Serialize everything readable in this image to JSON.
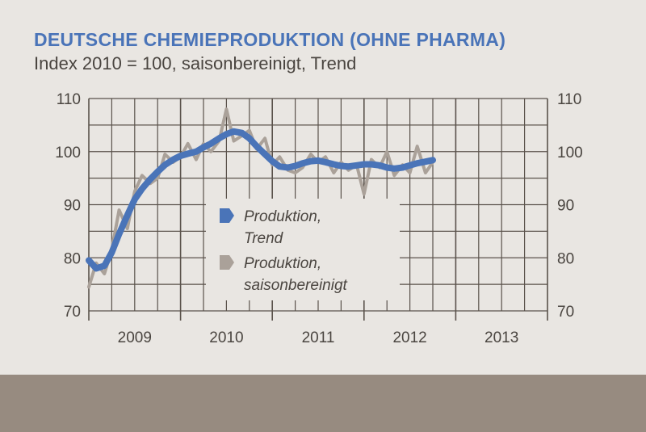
{
  "colors": {
    "background": "#e9e6e2",
    "title": "#4a74b8",
    "trend": "#4a74b8",
    "adjusted": "#aaa199",
    "grid": "#5a524b",
    "bottom_band": "#978b80"
  },
  "chart_data": {
    "type": "line",
    "title": "DEUTSCHE CHEMIEPRODUKTION (OHNE PHARMA)",
    "subtitle": "Index 2010 = 100, saisonbereinigt, Trend",
    "xlabel": "",
    "ylabel": "",
    "x_categories": [
      "2009",
      "2010",
      "2011",
      "2012",
      "2013"
    ],
    "ylim": [
      70,
      110
    ],
    "yticks": [
      70,
      80,
      90,
      100,
      110
    ],
    "grid": true,
    "legend_position": "center",
    "series": [
      {
        "name": "Produktion, Trend",
        "color": "#4a74b8",
        "values": [
          {
            "x": 2009.0,
            "y": 79.5
          },
          {
            "x": 2009.08,
            "y": 78.0
          },
          {
            "x": 2009.17,
            "y": 78.5
          },
          {
            "x": 2009.25,
            "y": 81.0
          },
          {
            "x": 2009.33,
            "y": 84.5
          },
          {
            "x": 2009.42,
            "y": 88.0
          },
          {
            "x": 2009.5,
            "y": 91.0
          },
          {
            "x": 2009.58,
            "y": 93.0
          },
          {
            "x": 2009.67,
            "y": 94.8
          },
          {
            "x": 2009.75,
            "y": 96.2
          },
          {
            "x": 2009.83,
            "y": 97.5
          },
          {
            "x": 2009.92,
            "y": 98.5
          },
          {
            "x": 2010.0,
            "y": 99.2
          },
          {
            "x": 2010.08,
            "y": 99.6
          },
          {
            "x": 2010.17,
            "y": 100.0
          },
          {
            "x": 2010.25,
            "y": 100.8
          },
          {
            "x": 2010.33,
            "y": 101.5
          },
          {
            "x": 2010.42,
            "y": 102.5
          },
          {
            "x": 2010.5,
            "y": 103.3
          },
          {
            "x": 2010.58,
            "y": 103.8
          },
          {
            "x": 2010.67,
            "y": 103.5
          },
          {
            "x": 2010.75,
            "y": 102.5
          },
          {
            "x": 2010.83,
            "y": 101.0
          },
          {
            "x": 2010.92,
            "y": 99.5
          },
          {
            "x": 2011.0,
            "y": 98.2
          },
          {
            "x": 2011.08,
            "y": 97.2
          },
          {
            "x": 2011.17,
            "y": 97.0
          },
          {
            "x": 2011.25,
            "y": 97.3
          },
          {
            "x": 2011.33,
            "y": 97.8
          },
          {
            "x": 2011.42,
            "y": 98.2
          },
          {
            "x": 2011.5,
            "y": 98.3
          },
          {
            "x": 2011.58,
            "y": 98.0
          },
          {
            "x": 2011.67,
            "y": 97.6
          },
          {
            "x": 2011.75,
            "y": 97.3
          },
          {
            "x": 2011.83,
            "y": 97.2
          },
          {
            "x": 2011.92,
            "y": 97.4
          },
          {
            "x": 2012.0,
            "y": 97.6
          },
          {
            "x": 2012.08,
            "y": 97.6
          },
          {
            "x": 2012.17,
            "y": 97.4
          },
          {
            "x": 2012.25,
            "y": 97.0
          },
          {
            "x": 2012.33,
            "y": 96.8
          },
          {
            "x": 2012.42,
            "y": 97.0
          },
          {
            "x": 2012.5,
            "y": 97.4
          },
          {
            "x": 2012.58,
            "y": 97.8
          },
          {
            "x": 2012.67,
            "y": 98.1
          },
          {
            "x": 2012.75,
            "y": 98.4
          }
        ]
      },
      {
        "name": "Produktion, saisonbereinigt",
        "color": "#aaa199",
        "values": [
          {
            "x": 2009.0,
            "y": 74.5
          },
          {
            "x": 2009.08,
            "y": 79.0
          },
          {
            "x": 2009.17,
            "y": 77.0
          },
          {
            "x": 2009.25,
            "y": 81.5
          },
          {
            "x": 2009.33,
            "y": 89.0
          },
          {
            "x": 2009.42,
            "y": 85.5
          },
          {
            "x": 2009.5,
            "y": 92.5
          },
          {
            "x": 2009.58,
            "y": 95.5
          },
          {
            "x": 2009.67,
            "y": 94.0
          },
          {
            "x": 2009.75,
            "y": 95.0
          },
          {
            "x": 2009.83,
            "y": 99.5
          },
          {
            "x": 2009.92,
            "y": 98.0
          },
          {
            "x": 2010.0,
            "y": 99.0
          },
          {
            "x": 2010.08,
            "y": 101.5
          },
          {
            "x": 2010.17,
            "y": 98.5
          },
          {
            "x": 2010.25,
            "y": 101.5
          },
          {
            "x": 2010.33,
            "y": 100.0
          },
          {
            "x": 2010.42,
            "y": 102.0
          },
          {
            "x": 2010.5,
            "y": 108.0
          },
          {
            "x": 2010.58,
            "y": 102.0
          },
          {
            "x": 2010.67,
            "y": 103.0
          },
          {
            "x": 2010.75,
            "y": 104.0
          },
          {
            "x": 2010.83,
            "y": 100.5
          },
          {
            "x": 2010.92,
            "y": 102.5
          },
          {
            "x": 2011.0,
            "y": 97.5
          },
          {
            "x": 2011.08,
            "y": 99.0
          },
          {
            "x": 2011.17,
            "y": 96.5
          },
          {
            "x": 2011.25,
            "y": 96.0
          },
          {
            "x": 2011.33,
            "y": 97.0
          },
          {
            "x": 2011.42,
            "y": 99.5
          },
          {
            "x": 2011.5,
            "y": 98.0
          },
          {
            "x": 2011.58,
            "y": 99.0
          },
          {
            "x": 2011.67,
            "y": 96.0
          },
          {
            "x": 2011.75,
            "y": 98.0
          },
          {
            "x": 2011.83,
            "y": 96.5
          },
          {
            "x": 2011.92,
            "y": 97.5
          },
          {
            "x": 2012.0,
            "y": 92.0
          },
          {
            "x": 2012.08,
            "y": 98.5
          },
          {
            "x": 2012.17,
            "y": 97.0
          },
          {
            "x": 2012.25,
            "y": 100.0
          },
          {
            "x": 2012.33,
            "y": 95.5
          },
          {
            "x": 2012.42,
            "y": 97.5
          },
          {
            "x": 2012.5,
            "y": 96.0
          },
          {
            "x": 2012.58,
            "y": 101.0
          },
          {
            "x": 2012.67,
            "y": 96.0
          },
          {
            "x": 2012.75,
            "y": 98.0
          }
        ]
      }
    ]
  }
}
